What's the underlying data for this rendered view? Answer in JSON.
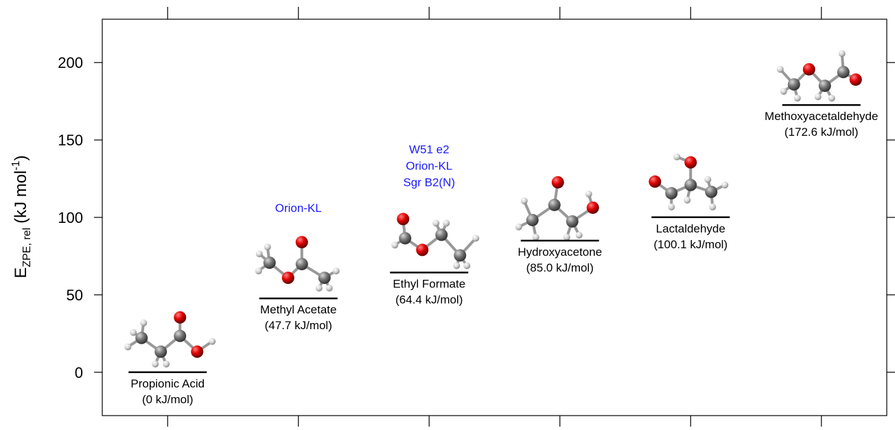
{
  "chart_data": {
    "type": "level",
    "ylabel": {
      "main": "E",
      "sub": "ZPE, rel",
      "unit": "(kJ mol",
      "sup": "-1",
      "close": ")"
    },
    "categories": [
      "Propionic Acid",
      "Methyl Acetate",
      "Ethyl Formate",
      "Hydroxyacetone",
      "Lactaldehyde",
      "Methoxyacetaldehyde"
    ],
    "values": [
      0,
      47.7,
      64.4,
      85.0,
      100.1,
      172.6
    ],
    "value_labels": [
      "(0 kJ/mol)",
      "(47.7 kJ/mol)",
      "(64.4 kJ/mol)",
      "(85.0 kJ/mol)",
      "(100.1 kJ/mol)",
      "(172.6 kJ/mol)"
    ],
    "annotations": [
      null,
      [
        "Orion-KL"
      ],
      [
        "W51 e2",
        "Orion-KL",
        "Sgr B2(N)"
      ],
      null,
      null,
      null
    ],
    "annotation_color": "#1a1aff",
    "color": "#000000",
    "ylim": [
      -28,
      228
    ],
    "yticks": [
      0,
      50,
      100,
      150,
      200
    ]
  }
}
